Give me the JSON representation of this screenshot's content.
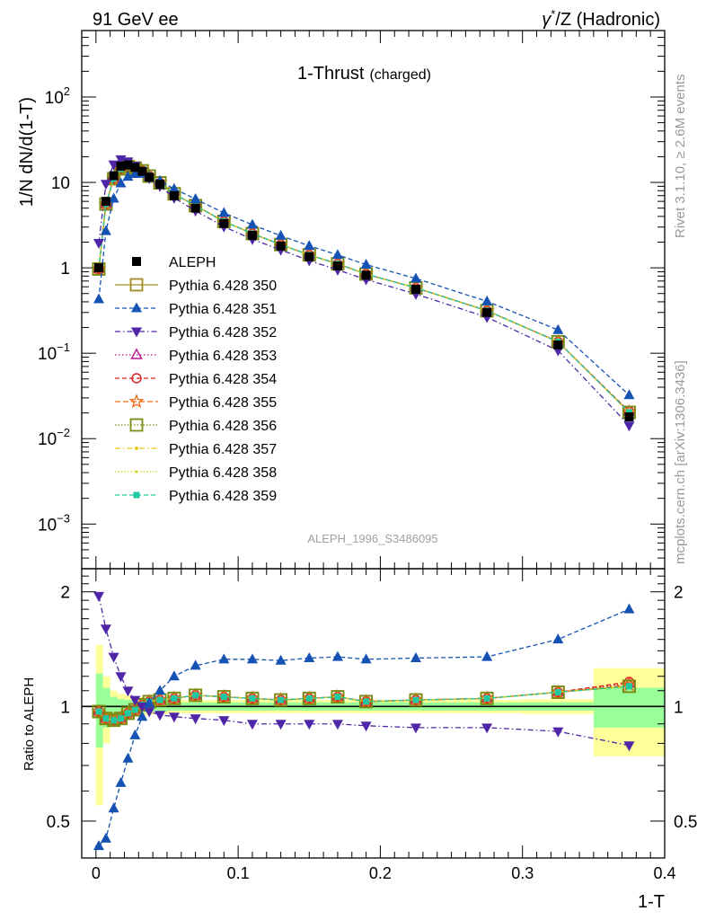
{
  "header": {
    "left": "91 GeV ee",
    "right_pre": "γ",
    "right_sup": "*",
    "right_post": "/Z (Hadronic)"
  },
  "side": {
    "rivet": "Rivet 3.1.10, ≥ 2.6M events",
    "mcplots": "mcplots.cern.ch [arXiv:1306.3436]"
  },
  "chart_data": {
    "type": "line",
    "title": "1-Thrust",
    "title_small": "(charged)",
    "analysis_label": "ALEPH_1996_S3486095",
    "xlabel": "1-T",
    "ylabel": "1/N dN/d(1-T)",
    "ratio_ylabel": "Ratio to ALEPH",
    "xlim": [
      -0.01,
      0.4
    ],
    "ylim": [
      0.0003,
      600
    ],
    "yscale": "log",
    "ratio_ylim": [
      0.4,
      2.3
    ],
    "xticks": [
      0,
      0.1,
      0.2,
      0.3,
      0.4
    ],
    "xtick_labels": [
      "0",
      "0.1",
      "0.2",
      "0.3",
      "0.4"
    ],
    "ratio_yticks": [
      0.5,
      1,
      2
    ],
    "ratio_ytick_labels": [
      "0.5",
      "1",
      "2"
    ],
    "legend_position": "middle-left",
    "x": [
      0.002,
      0.007,
      0.0125,
      0.0175,
      0.0225,
      0.0275,
      0.0325,
      0.0375,
      0.045,
      0.055,
      0.07,
      0.09,
      0.11,
      0.13,
      0.15,
      0.17,
      0.19,
      0.225,
      0.275,
      0.325,
      0.375
    ],
    "reference": {
      "name": "ALEPH",
      "values": [
        1.0,
        6.0,
        12.0,
        15.5,
        16.0,
        15.0,
        13.5,
        11.5,
        9.5,
        7.0,
        5.0,
        3.3,
        2.4,
        1.8,
        1.35,
        1.05,
        0.82,
        0.56,
        0.3,
        0.125,
        0.018
      ],
      "band_edges": [
        0,
        0.005,
        0.01,
        0.015,
        0.02,
        0.025,
        0.03,
        0.035,
        0.04,
        0.05,
        0.06,
        0.08,
        0.1,
        0.12,
        0.14,
        0.16,
        0.18,
        0.2,
        0.25,
        0.3,
        0.35,
        0.4
      ],
      "band_stat": [
        0.22,
        0.12,
        0.06,
        0.045,
        0.04,
        0.035,
        0.035,
        0.03,
        0.03,
        0.025,
        0.025,
        0.025,
        0.025,
        0.025,
        0.025,
        0.025,
        0.025,
        0.025,
        0.025,
        0.025,
        0.12
      ],
      "band_total": [
        0.45,
        0.2,
        0.1,
        0.08,
        0.07,
        0.06,
        0.055,
        0.05,
        0.045,
        0.04,
        0.04,
        0.04,
        0.04,
        0.04,
        0.04,
        0.04,
        0.04,
        0.04,
        0.04,
        0.045,
        0.26
      ]
    },
    "series": [
      {
        "name": "Pythia 6.428 350",
        "color": "#a08c1e",
        "marker": "square-open",
        "dash": "",
        "ratio": [
          0.97,
          0.93,
          0.92,
          0.93,
          0.96,
          0.98,
          1.01,
          1.03,
          1.04,
          1.05,
          1.07,
          1.06,
          1.05,
          1.04,
          1.05,
          1.06,
          1.03,
          1.04,
          1.05,
          1.09,
          1.13
        ]
      },
      {
        "name": "Pythia 6.428 351",
        "color": "#1452b4",
        "marker": "triangle-up",
        "dash": "5,3",
        "ratio": [
          0.43,
          0.45,
          0.54,
          0.63,
          0.73,
          0.84,
          0.94,
          1.02,
          1.1,
          1.2,
          1.28,
          1.33,
          1.33,
          1.32,
          1.34,
          1.35,
          1.33,
          1.34,
          1.35,
          1.5,
          1.8
        ]
      },
      {
        "name": "Pythia 6.428 352",
        "color": "#5026a8",
        "marker": "triangle-down",
        "dash": "6,3,1.5,3",
        "ratio": [
          1.95,
          1.6,
          1.35,
          1.2,
          1.1,
          1.04,
          1.0,
          0.97,
          0.95,
          0.94,
          0.93,
          0.92,
          0.9,
          0.9,
          0.9,
          0.9,
          0.89,
          0.88,
          0.88,
          0.86,
          0.79
        ]
      },
      {
        "name": "Pythia 6.428 353",
        "color": "#b4148c",
        "marker": "triangle-open",
        "dash": "1.5,2.5",
        "ratio": [
          0.97,
          0.93,
          0.92,
          0.93,
          0.96,
          0.98,
          1.01,
          1.03,
          1.04,
          1.05,
          1.07,
          1.06,
          1.05,
          1.04,
          1.05,
          1.06,
          1.03,
          1.04,
          1.05,
          1.09,
          1.15
        ]
      },
      {
        "name": "Pythia 6.428 354",
        "color": "#e01c1c",
        "marker": "circle-open",
        "dash": "5,3",
        "ratio": [
          0.97,
          0.93,
          0.92,
          0.93,
          0.96,
          0.98,
          1.01,
          1.03,
          1.04,
          1.05,
          1.07,
          1.06,
          1.05,
          1.04,
          1.05,
          1.06,
          1.03,
          1.04,
          1.05,
          1.09,
          1.16
        ]
      },
      {
        "name": "Pythia 6.428 355",
        "color": "#f06a14",
        "marker": "star-open",
        "dash": "6,3",
        "ratio": [
          0.97,
          0.93,
          0.92,
          0.93,
          0.96,
          0.98,
          1.01,
          1.03,
          1.04,
          1.05,
          1.07,
          1.06,
          1.05,
          1.04,
          1.05,
          1.06,
          1.03,
          1.04,
          1.05,
          1.09,
          1.14
        ]
      },
      {
        "name": "Pythia 6.428 356",
        "color": "#7a8c14",
        "marker": "square-open",
        "dash": "1.5,2",
        "ratio": [
          0.97,
          0.93,
          0.92,
          0.93,
          0.96,
          0.98,
          1.01,
          1.03,
          1.04,
          1.05,
          1.07,
          1.06,
          1.05,
          1.04,
          1.05,
          1.06,
          1.03,
          1.04,
          1.05,
          1.09,
          1.13
        ]
      },
      {
        "name": "Pythia 6.428 357",
        "color": "#e6c814",
        "marker": "dot",
        "dash": "6,3,1.5,3",
        "ratio": [
          0.97,
          0.93,
          0.92,
          0.93,
          0.96,
          0.98,
          1.01,
          1.03,
          1.04,
          1.05,
          1.07,
          1.06,
          1.05,
          1.04,
          1.05,
          1.06,
          1.03,
          1.04,
          1.05,
          1.09,
          1.13
        ]
      },
      {
        "name": "Pythia 6.428 358",
        "color": "#d2d214",
        "marker": "small-dot",
        "dash": "1.5,2",
        "ratio": [
          0.97,
          0.93,
          0.92,
          0.93,
          0.96,
          0.98,
          1.01,
          1.03,
          1.04,
          1.05,
          1.07,
          1.06,
          1.05,
          1.04,
          1.05,
          1.06,
          1.03,
          1.04,
          1.05,
          1.09,
          1.13
        ]
      },
      {
        "name": "Pythia 6.428 359",
        "color": "#1ec8a0",
        "marker": "square-filled",
        "dash": "5,3",
        "ratio": [
          0.97,
          0.93,
          0.92,
          0.93,
          0.96,
          0.98,
          1.01,
          1.03,
          1.04,
          1.05,
          1.07,
          1.06,
          1.05,
          1.04,
          1.05,
          1.06,
          1.03,
          1.04,
          1.05,
          1.09,
          1.13
        ]
      }
    ]
  }
}
